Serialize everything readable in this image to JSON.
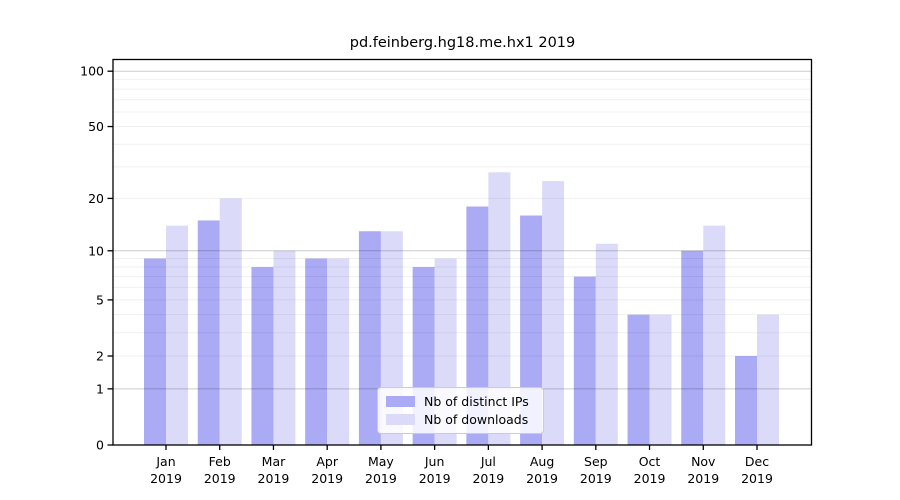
{
  "title": "pd.feinberg.hg18.me.hx1 2019",
  "chart_data": {
    "type": "bar",
    "title": "pd.feinberg.hg18.me.hx1 2019",
    "categories": [
      "Jan",
      "Feb",
      "Mar",
      "Apr",
      "May",
      "Jun",
      "Jul",
      "Aug",
      "Sep",
      "Oct",
      "Nov",
      "Dec"
    ],
    "year_label": "2019",
    "series": [
      {
        "name": "Nb of distinct IPs",
        "color": "#aaaaf5",
        "values": [
          9,
          15,
          8,
          9,
          13,
          8,
          18,
          16,
          7,
          4,
          10,
          2
        ]
      },
      {
        "name": "Nb of downloads",
        "color": "#dbdbf9",
        "values": [
          14,
          20,
          10,
          9,
          13,
          9,
          28,
          25,
          11,
          4,
          14,
          4
        ]
      }
    ],
    "yscale": "log1p",
    "ylim": [
      0,
      116
    ],
    "yticks": [
      0,
      1,
      2,
      5,
      10,
      20,
      50,
      100
    ],
    "major_gridlines": [
      1,
      10,
      100
    ],
    "minor_gridlines": [
      2,
      3,
      4,
      5,
      6,
      7,
      8,
      9,
      20,
      30,
      40,
      50,
      60,
      70,
      80,
      90
    ],
    "grid": true,
    "legend": {
      "position": "inside-bottom-center",
      "entries": [
        "Nb of distinct IPs",
        "Nb of downloads"
      ]
    },
    "colors": {
      "frame": "#000000",
      "major_grid": "rgba(0,0,0,0.20)",
      "minor_grid": "rgba(0,0,0,0.06)",
      "text": "#000000"
    }
  }
}
